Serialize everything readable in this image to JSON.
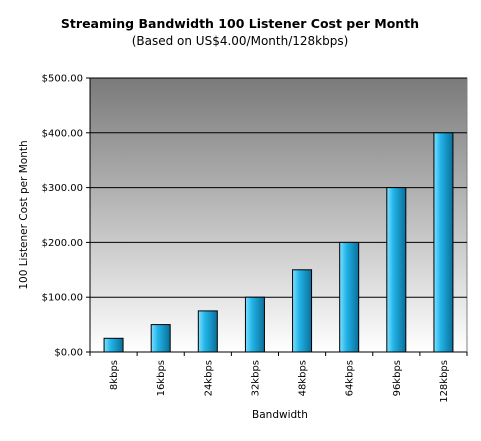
{
  "chart_data": {
    "type": "bar",
    "title": "Streaming Bandwidth 100 Listener Cost per Month",
    "subtitle": "(Based on US$4.00/Month/128kbps)",
    "xlabel": "Bandwidth",
    "ylabel": "100 Listener Cost per Month",
    "categories": [
      "8kbps",
      "16kbps",
      "24kbps",
      "32kbps",
      "48kbps",
      "64kbps",
      "96kbps",
      "128kbps"
    ],
    "values": [
      25,
      50,
      75,
      100,
      150,
      200,
      300,
      400
    ],
    "ylim": [
      0,
      500
    ],
    "yticks": [
      0,
      100,
      200,
      300,
      400,
      500
    ],
    "ytick_labels": [
      "$0.00",
      "$100.00",
      "$200.00",
      "$300.00",
      "$400.00",
      "$500.00"
    ],
    "grid": true,
    "legend": "none",
    "colors": {
      "bar_light": "#7fe0ff",
      "bar_mid": "#22b4e8",
      "bar_dark": "#0a6f9a",
      "plot_top": "#7a7a7a",
      "plot_bottom": "#ffffff"
    }
  }
}
